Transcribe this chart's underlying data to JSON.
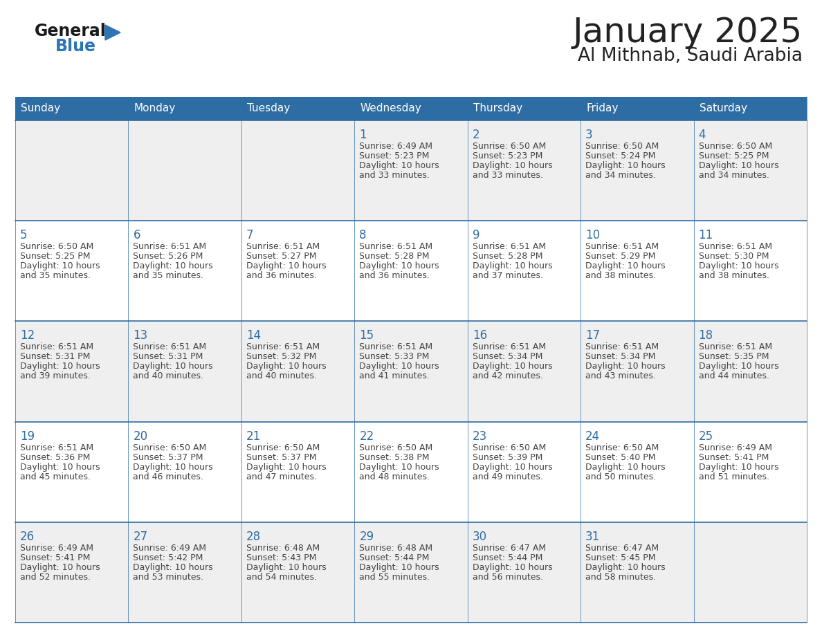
{
  "title": "January 2025",
  "subtitle": "Al Mithnab, Saudi Arabia",
  "days_of_week": [
    "Sunday",
    "Monday",
    "Tuesday",
    "Wednesday",
    "Thursday",
    "Friday",
    "Saturday"
  ],
  "header_bg": "#2E6DA4",
  "header_text": "#FFFFFF",
  "cell_bg_odd": "#EFEFEF",
  "cell_bg_even": "#FFFFFF",
  "cell_border": "#2E6DA4",
  "day_number_color": "#2E6DA4",
  "text_color": "#444444",
  "title_color": "#222222",
  "logo_general_color": "#1a1a1a",
  "logo_blue_color": "#2E75B6",
  "weeks": [
    [
      null,
      null,
      null,
      {
        "day": 1,
        "sunrise": "6:49 AM",
        "sunset": "5:23 PM",
        "daylight": "10 hours and 33 minutes."
      },
      {
        "day": 2,
        "sunrise": "6:50 AM",
        "sunset": "5:23 PM",
        "daylight": "10 hours and 33 minutes."
      },
      {
        "day": 3,
        "sunrise": "6:50 AM",
        "sunset": "5:24 PM",
        "daylight": "10 hours and 34 minutes."
      },
      {
        "day": 4,
        "sunrise": "6:50 AM",
        "sunset": "5:25 PM",
        "daylight": "10 hours and 34 minutes."
      }
    ],
    [
      {
        "day": 5,
        "sunrise": "6:50 AM",
        "sunset": "5:25 PM",
        "daylight": "10 hours and 35 minutes."
      },
      {
        "day": 6,
        "sunrise": "6:51 AM",
        "sunset": "5:26 PM",
        "daylight": "10 hours and 35 minutes."
      },
      {
        "day": 7,
        "sunrise": "6:51 AM",
        "sunset": "5:27 PM",
        "daylight": "10 hours and 36 minutes."
      },
      {
        "day": 8,
        "sunrise": "6:51 AM",
        "sunset": "5:28 PM",
        "daylight": "10 hours and 36 minutes."
      },
      {
        "day": 9,
        "sunrise": "6:51 AM",
        "sunset": "5:28 PM",
        "daylight": "10 hours and 37 minutes."
      },
      {
        "day": 10,
        "sunrise": "6:51 AM",
        "sunset": "5:29 PM",
        "daylight": "10 hours and 38 minutes."
      },
      {
        "day": 11,
        "sunrise": "6:51 AM",
        "sunset": "5:30 PM",
        "daylight": "10 hours and 38 minutes."
      }
    ],
    [
      {
        "day": 12,
        "sunrise": "6:51 AM",
        "sunset": "5:31 PM",
        "daylight": "10 hours and 39 minutes."
      },
      {
        "day": 13,
        "sunrise": "6:51 AM",
        "sunset": "5:31 PM",
        "daylight": "10 hours and 40 minutes."
      },
      {
        "day": 14,
        "sunrise": "6:51 AM",
        "sunset": "5:32 PM",
        "daylight": "10 hours and 40 minutes."
      },
      {
        "day": 15,
        "sunrise": "6:51 AM",
        "sunset": "5:33 PM",
        "daylight": "10 hours and 41 minutes."
      },
      {
        "day": 16,
        "sunrise": "6:51 AM",
        "sunset": "5:34 PM",
        "daylight": "10 hours and 42 minutes."
      },
      {
        "day": 17,
        "sunrise": "6:51 AM",
        "sunset": "5:34 PM",
        "daylight": "10 hours and 43 minutes."
      },
      {
        "day": 18,
        "sunrise": "6:51 AM",
        "sunset": "5:35 PM",
        "daylight": "10 hours and 44 minutes."
      }
    ],
    [
      {
        "day": 19,
        "sunrise": "6:51 AM",
        "sunset": "5:36 PM",
        "daylight": "10 hours and 45 minutes."
      },
      {
        "day": 20,
        "sunrise": "6:50 AM",
        "sunset": "5:37 PM",
        "daylight": "10 hours and 46 minutes."
      },
      {
        "day": 21,
        "sunrise": "6:50 AM",
        "sunset": "5:37 PM",
        "daylight": "10 hours and 47 minutes."
      },
      {
        "day": 22,
        "sunrise": "6:50 AM",
        "sunset": "5:38 PM",
        "daylight": "10 hours and 48 minutes."
      },
      {
        "day": 23,
        "sunrise": "6:50 AM",
        "sunset": "5:39 PM",
        "daylight": "10 hours and 49 minutes."
      },
      {
        "day": 24,
        "sunrise": "6:50 AM",
        "sunset": "5:40 PM",
        "daylight": "10 hours and 50 minutes."
      },
      {
        "day": 25,
        "sunrise": "6:49 AM",
        "sunset": "5:41 PM",
        "daylight": "10 hours and 51 minutes."
      }
    ],
    [
      {
        "day": 26,
        "sunrise": "6:49 AM",
        "sunset": "5:41 PM",
        "daylight": "10 hours and 52 minutes."
      },
      {
        "day": 27,
        "sunrise": "6:49 AM",
        "sunset": "5:42 PM",
        "daylight": "10 hours and 53 minutes."
      },
      {
        "day": 28,
        "sunrise": "6:48 AM",
        "sunset": "5:43 PM",
        "daylight": "10 hours and 54 minutes."
      },
      {
        "day": 29,
        "sunrise": "6:48 AM",
        "sunset": "5:44 PM",
        "daylight": "10 hours and 55 minutes."
      },
      {
        "day": 30,
        "sunrise": "6:47 AM",
        "sunset": "5:44 PM",
        "daylight": "10 hours and 56 minutes."
      },
      {
        "day": 31,
        "sunrise": "6:47 AM",
        "sunset": "5:45 PM",
        "daylight": "10 hours and 58 minutes."
      },
      null
    ]
  ]
}
